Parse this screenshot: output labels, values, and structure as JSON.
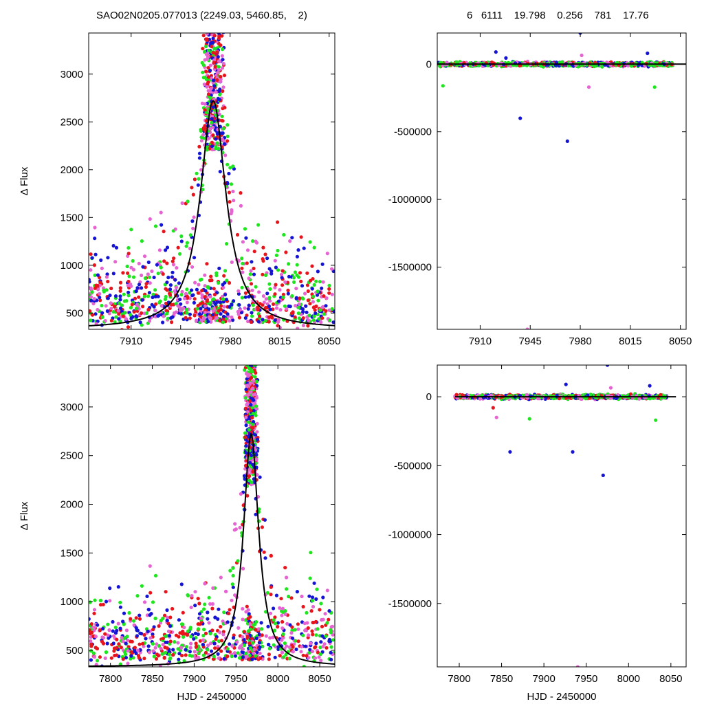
{
  "header": {
    "left_text": "SAO02N0205.077013 (2249.03, 5460.85,    2)",
    "right_text": "6   6111    19.798    0.256    781    17.76"
  },
  "colors": {
    "red": "#e8141c",
    "blue": "#1414d2",
    "green": "#1ee61e",
    "magenta": "#e664d2",
    "model": "#000000"
  },
  "chart_data": [
    {
      "id": "top-left",
      "type": "scatter",
      "xlabel": "",
      "ylabel": "Δ Flux",
      "xlim": [
        7880,
        8054
      ],
      "ylim": [
        330,
        3430
      ],
      "xticks": [
        7910,
        7945,
        7980,
        8015,
        8050
      ],
      "yticks": [
        500,
        1000,
        1500,
        2000,
        2500,
        3000
      ],
      "model": {
        "peak_x": 7968,
        "peak_y": 2720,
        "baseline": 330,
        "width": 11
      },
      "point_density": 1.0,
      "series_names": [
        "red",
        "blue",
        "green",
        "magenta"
      ]
    },
    {
      "id": "top-right",
      "type": "scatter",
      "xlabel": "",
      "ylabel": "",
      "xlim": [
        7880,
        8054
      ],
      "ylim": [
        -1960000,
        230000
      ],
      "xticks": [
        7910,
        7945,
        7980,
        8015,
        8050
      ],
      "yticks": [
        0,
        -500000,
        -1000000,
        -1500000
      ],
      "outliers": [
        {
          "x": 7980,
          "y": 230000,
          "c": "blue"
        },
        {
          "x": 7938,
          "y": -400000,
          "c": "blue"
        },
        {
          "x": 7971,
          "y": -570000,
          "c": "blue"
        },
        {
          "x": 7943,
          "y": -1960000,
          "c": "magenta"
        },
        {
          "x": 7921,
          "y": 90000,
          "c": "blue"
        },
        {
          "x": 8027,
          "y": 80000,
          "c": "blue"
        },
        {
          "x": 7884,
          "y": -160000,
          "c": "green"
        },
        {
          "x": 7986,
          "y": -170000,
          "c": "magenta"
        },
        {
          "x": 8032,
          "y": -170000,
          "c": "green"
        },
        {
          "x": 7981,
          "y": 65000,
          "c": "magenta"
        },
        {
          "x": 7928,
          "y": 45000,
          "c": "blue"
        }
      ]
    },
    {
      "id": "bottom-left",
      "type": "scatter",
      "xlabel": "HJD - 2450000",
      "ylabel": "Δ Flux",
      "xlim": [
        7774,
        8068
      ],
      "ylim": [
        330,
        3430
      ],
      "xticks": [
        7800,
        7850,
        7900,
        7950,
        8000,
        8050
      ],
      "yticks": [
        500,
        1000,
        1500,
        2000,
        2500,
        3000
      ],
      "model": {
        "peak_x": 7968,
        "peak_y": 2720,
        "baseline": 330,
        "width": 11
      },
      "point_density": 1.0,
      "series_names": [
        "red",
        "blue",
        "green",
        "magenta"
      ]
    },
    {
      "id": "bottom-right",
      "type": "scatter",
      "xlabel": "HJD - 2450000",
      "ylabel": "",
      "xlim": [
        7774,
        8068
      ],
      "ylim": [
        -1960000,
        230000
      ],
      "xticks": [
        7800,
        7850,
        7900,
        7950,
        8000,
        8050
      ],
      "yticks": [
        0,
        -500000,
        -1000000,
        -1500000
      ],
      "outliers": [
        {
          "x": 7975,
          "y": 230000,
          "c": "blue"
        },
        {
          "x": 7860,
          "y": -400000,
          "c": "blue"
        },
        {
          "x": 7934,
          "y": -400000,
          "c": "blue"
        },
        {
          "x": 7970,
          "y": -570000,
          "c": "blue"
        },
        {
          "x": 7940,
          "y": -1960000,
          "c": "magenta"
        },
        {
          "x": 7926,
          "y": 90000,
          "c": "blue"
        },
        {
          "x": 8025,
          "y": 80000,
          "c": "blue"
        },
        {
          "x": 7883,
          "y": -160000,
          "c": "green"
        },
        {
          "x": 7844,
          "y": -150000,
          "c": "magenta"
        },
        {
          "x": 8032,
          "y": -170000,
          "c": "green"
        },
        {
          "x": 7979,
          "y": 65000,
          "c": "magenta"
        },
        {
          "x": 7840,
          "y": -80000,
          "c": "red"
        }
      ]
    }
  ]
}
